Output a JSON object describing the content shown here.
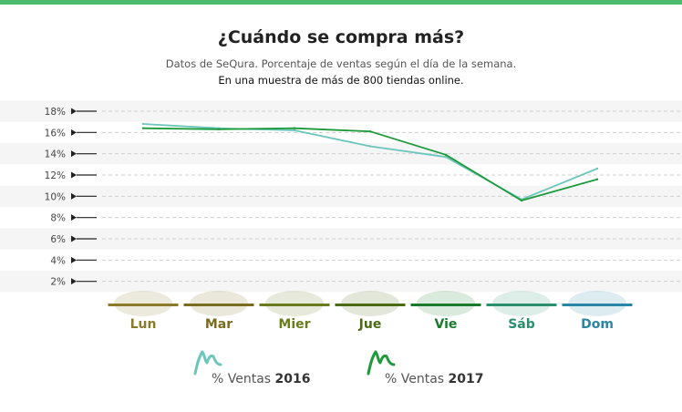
{
  "header": {
    "title": "¿Cuándo se compra más?",
    "subtitle": "Datos de SeQura. Porcentaje de ventas según el día de la semana.",
    "subtitle2": "En una muestra de más de 800 tiendas online."
  },
  "colors": {
    "top_bar": "#4dbb6e",
    "series_2016": "#6cc6bc",
    "series_2017": "#1d9a3c",
    "days": [
      "#8a7a2a",
      "#7a6c1e",
      "#6a7d1c",
      "#4a6a14",
      "#1a7a2e",
      "#2a8f6c",
      "#2a86a6"
    ]
  },
  "chart_data": {
    "type": "line",
    "categories": [
      "Lun",
      "Mar",
      "Mier",
      "Jue",
      "Vie",
      "Sáb",
      "Dom"
    ],
    "yticks": [
      "2%",
      "4%",
      "6%",
      "8%",
      "10%",
      "12%",
      "14%",
      "16%",
      "18%"
    ],
    "ylim": [
      0,
      18
    ],
    "grid": true,
    "legend_position": "bottom",
    "series": [
      {
        "name": "% Ventas 2016",
        "prefix": "% Ventas ",
        "year": "2016",
        "values": [
          16.8,
          16.4,
          16.2,
          14.7,
          13.7,
          9.7,
          12.6
        ]
      },
      {
        "name": "% Ventas 2017",
        "prefix": "% Ventas ",
        "year": "2017",
        "values": [
          16.4,
          16.3,
          16.4,
          16.1,
          13.9,
          9.6,
          11.6
        ]
      }
    ]
  }
}
